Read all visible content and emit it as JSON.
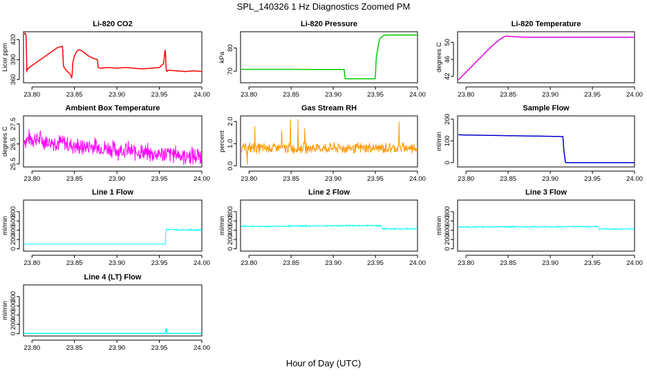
{
  "page": {
    "title": "SPL_140326  1 Hz Diagnostics Zoomed PM",
    "xlabel": "Hour of Day (UTC)"
  },
  "chart_data": [
    {
      "type": "line",
      "title": "Li-820 CO2",
      "ylabel": "Licor ppm",
      "color": "#ff0000",
      "xlim": [
        23.79,
        24.0
      ],
      "ylim": [
        355,
        432
      ],
      "x_ticks": [
        "23.80",
        "23.85",
        "23.90",
        "23.95",
        "24.00"
      ],
      "y_ticks": [
        360,
        390,
        420
      ],
      "series": [
        {
          "x": [
            23.791,
            23.792,
            23.793,
            23.794,
            23.795,
            23.8,
            23.81,
            23.82,
            23.83,
            23.836,
            23.837,
            23.838,
            23.84,
            23.845,
            23.847,
            23.848,
            23.85,
            23.853,
            23.856,
            23.86,
            23.866,
            23.872,
            23.877,
            23.878,
            23.88,
            23.89,
            23.9,
            23.91,
            23.92,
            23.93,
            23.94,
            23.95,
            23.955,
            23.957,
            23.958,
            23.959,
            23.96,
            23.97,
            23.98,
            23.99,
            24.0
          ],
          "y": [
            428,
            430,
            426,
            372,
            376,
            381,
            390,
            399,
            408,
            410,
            380,
            378,
            374,
            368,
            361,
            385,
            396,
            403,
            405,
            402,
            396,
            392,
            390,
            378,
            377,
            378,
            377,
            378,
            377,
            376,
            377,
            378,
            384,
            408,
            374,
            372,
            374,
            373,
            372,
            373,
            372
          ]
        }
      ]
    },
    {
      "type": "line",
      "title": "Li-820 Pressure",
      "ylabel": "kPa",
      "color": "#00cc00",
      "xlim": [
        23.79,
        24.0
      ],
      "ylim": [
        65,
        87
      ],
      "x_ticks": [
        "23.80",
        "23.85",
        "23.90",
        "23.95",
        "24.00"
      ],
      "y_ticks": [
        70,
        80
      ],
      "series": [
        {
          "x": [
            23.791,
            23.8,
            23.85,
            23.9,
            23.913,
            23.914,
            23.92,
            23.94,
            23.95,
            23.951,
            23.955,
            23.96,
            23.97,
            23.98,
            23.99,
            24.0
          ],
          "y": [
            70.8,
            70.8,
            70.8,
            70.7,
            70.7,
            66.8,
            66.7,
            66.7,
            66.7,
            76,
            84,
            85.5,
            85.6,
            85.6,
            85.6,
            85.6
          ]
        }
      ]
    },
    {
      "type": "line",
      "title": "Li-820 Temperature",
      "ylabel": "degrees C",
      "color": "#e000e0",
      "xlim": [
        23.79,
        24.0
      ],
      "ylim": [
        40.5,
        52.5
      ],
      "x_ticks": [
        "23.80",
        "23.85",
        "23.90",
        "23.95",
        "24.00"
      ],
      "y_ticks": [
        42,
        46,
        50
      ],
      "series": [
        {
          "x": [
            23.791,
            23.8,
            23.81,
            23.82,
            23.83,
            23.84,
            23.845,
            23.848,
            23.852,
            23.86,
            23.87,
            23.88,
            23.9,
            23.92,
            23.94,
            23.96,
            23.98,
            24.0
          ],
          "y": [
            41.2,
            43.0,
            45.0,
            47.0,
            49.0,
            50.7,
            51.3,
            51.5,
            51.4,
            51.3,
            51.2,
            51.2,
            51.2,
            51.2,
            51.2,
            51.2,
            51.2,
            51.2
          ]
        }
      ]
    },
    {
      "type": "line",
      "title": "Ambient Box Temperature",
      "ylabel": "degrees C",
      "color": "#ff00ff",
      "xlim": [
        23.79,
        24.0
      ],
      "ylim": [
        25.35,
        27.9
      ],
      "x_ticks": [
        "23.80",
        "23.85",
        "23.90",
        "23.95",
        "24.00"
      ],
      "y_ticks": [
        25.5,
        26.5,
        27.5
      ],
      "series": [
        {
          "x": [
            23.791,
            23.8,
            23.81,
            23.82,
            23.83,
            23.84,
            23.85,
            23.86,
            23.87,
            23.88,
            23.89,
            23.9,
            23.91,
            23.92,
            23.93,
            23.94,
            23.95,
            23.96,
            23.97,
            23.98,
            23.99,
            24.0
          ],
          "y": [
            26.7,
            26.8,
            26.7,
            26.6,
            26.6,
            26.5,
            26.4,
            26.3,
            26.4,
            26.3,
            26.3,
            26.2,
            26.2,
            26.1,
            26.1,
            26.0,
            26.0,
            26.0,
            26.0,
            25.9,
            25.9,
            25.9
          ],
          "spread": 0.55
        }
      ]
    },
    {
      "type": "line",
      "title": "Gas Stream RH",
      "ylabel": "percent",
      "color": "#ff9900",
      "xlim": [
        23.79,
        24.0
      ],
      "ylim": [
        -0.05,
        2.25
      ],
      "x_ticks": [
        "23.80",
        "23.85",
        "23.90",
        "23.95",
        "24.00"
      ],
      "y_ticks": [
        0.0,
        1.0,
        2.0
      ],
      "series": [
        {
          "x": [
            23.791,
            23.8,
            23.82,
            23.84,
            23.86,
            23.88,
            23.9,
            23.92,
            23.94,
            23.96,
            23.98,
            24.0
          ],
          "y": [
            0.8,
            0.8,
            0.8,
            0.8,
            0.8,
            0.8,
            0.8,
            0.8,
            0.8,
            0.8,
            0.8,
            0.8
          ],
          "spread": 0.3,
          "spikes": [
            [
              23.798,
              0.05
            ],
            [
              23.807,
              1.8
            ],
            [
              23.849,
              2.1
            ],
            [
              23.858,
              2.1
            ],
            [
              23.978,
              2.0
            ],
            [
              23.866,
              1.7
            ],
            [
              23.839,
              1.6
            ]
          ]
        }
      ]
    },
    {
      "type": "line",
      "title": "Sample Flow",
      "ylabel": "ml/min",
      "color": "#0000cc",
      "xlim": [
        23.79,
        24.0
      ],
      "ylim": [
        -20,
        215
      ],
      "x_ticks": [
        "23.80",
        "23.85",
        "23.90",
        "23.95",
        "24.00"
      ],
      "y_ticks": [
        0,
        100,
        200
      ],
      "series": [
        {
          "x": [
            23.791,
            23.8,
            23.85,
            23.9,
            23.915,
            23.916,
            23.918,
            23.93,
            23.95,
            23.98,
            24.0
          ],
          "y": [
            128,
            127,
            124,
            121,
            120,
            60,
            0,
            0,
            0,
            0,
            0
          ]
        }
      ]
    },
    {
      "type": "line",
      "title": "Line 1 Flow",
      "ylabel": "ml/min",
      "color": "#00ffff",
      "xlim": [
        23.79,
        24.0
      ],
      "ylim": [
        -50,
        1050
      ],
      "x_ticks": [
        "23.80",
        "23.85",
        "23.90",
        "23.95",
        "24.00"
      ],
      "y_ticks": [
        0,
        200,
        400,
        600,
        800
      ],
      "series": [
        {
          "x": [
            23.791,
            23.85,
            23.9,
            23.957,
            23.958,
            23.97,
            23.985,
            24.0
          ],
          "y": [
            100,
            100,
            100,
            100,
            420,
            410,
            410,
            405
          ],
          "noise_after": 23.958,
          "noise_amp": 30
        }
      ]
    },
    {
      "type": "line",
      "title": "Line 2 Flow",
      "ylabel": "ml/min",
      "color": "#00ffff",
      "xlim": [
        23.79,
        24.0
      ],
      "ylim": [
        -50,
        1050
      ],
      "x_ticks": [
        "23.80",
        "23.85",
        "23.90",
        "23.95",
        "24.00"
      ],
      "y_ticks": [
        0,
        200,
        400,
        600,
        800
      ],
      "series": [
        {
          "x": [
            23.791,
            23.82,
            23.85,
            23.9,
            23.957,
            23.958,
            23.98,
            24.0
          ],
          "y": [
            490,
            480,
            490,
            495,
            500,
            430,
            430,
            430
          ],
          "noise_amp": 28
        }
      ]
    },
    {
      "type": "line",
      "title": "Line 3 Flow",
      "ylabel": "ml/min",
      "color": "#00ffff",
      "xlim": [
        23.79,
        24.0
      ],
      "ylim": [
        -50,
        1050
      ],
      "x_ticks": [
        "23.80",
        "23.85",
        "23.90",
        "23.95",
        "24.00"
      ],
      "y_ticks": [
        0,
        200,
        400,
        600,
        800
      ],
      "series": [
        {
          "x": [
            23.791,
            23.82,
            23.85,
            23.9,
            23.957,
            23.958,
            23.98,
            24.0
          ],
          "y": [
            470,
            470,
            475,
            475,
            480,
            430,
            425,
            430
          ],
          "noise_amp": 25
        }
      ]
    },
    {
      "type": "line",
      "title": "Line 4 (LT) Flow",
      "ylabel": "ml/min",
      "color": "#00ffff",
      "xlim": [
        23.79,
        24.0
      ],
      "ylim": [
        -50,
        1050
      ],
      "x_ticks": [
        "23.80",
        "23.85",
        "23.90",
        "23.95",
        "24.00"
      ],
      "y_ticks": [
        0,
        200,
        400,
        600,
        800
      ],
      "series": [
        {
          "x": [
            23.791,
            23.85,
            23.9,
            23.957,
            23.958,
            23.959,
            23.96,
            24.0
          ],
          "y": [
            5,
            5,
            5,
            5,
            130,
            5,
            5,
            5
          ]
        }
      ]
    }
  ]
}
